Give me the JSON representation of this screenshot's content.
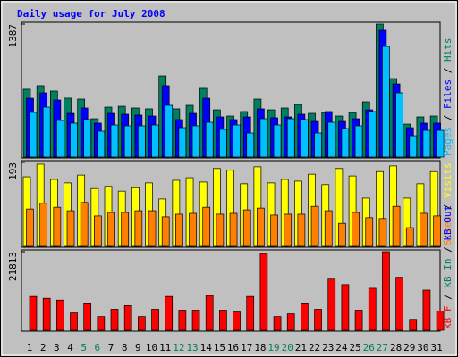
{
  "chart_data": [
    {
      "type": "bar",
      "title": "Daily usage for July 2008",
      "ylim": [
        0,
        1387
      ],
      "yticks": [
        1387
      ],
      "series": [
        {
          "name": "Pages",
          "color": "#00c0ff",
          "values": [
            466,
            521,
            382,
            354,
            391,
            270,
            335,
            326,
            326,
            335,
            540,
            307,
            326,
            363,
            289,
            335,
            251,
            400,
            335,
            400,
            391,
            251,
            363,
            298,
            326,
            475,
            1154,
            670,
            223,
            279,
            279
          ]
        },
        {
          "name": "Files",
          "color": "#0000ff",
          "values": [
            614,
            670,
            596,
            456,
            512,
            354,
            456,
            447,
            438,
            428,
            745,
            391,
            456,
            614,
            419,
            391,
            419,
            503,
            410,
            419,
            447,
            372,
            475,
            372,
            400,
            493,
            1322,
            763,
            307,
            354,
            354
          ]
        },
        {
          "name": "Hits",
          "color": "#008060",
          "values": [
            708,
            745,
            689,
            615,
            605,
            400,
            521,
            530,
            512,
            503,
            847,
            503,
            540,
            717,
            493,
            428,
            475,
            605,
            493,
            512,
            549,
            456,
            465,
            428,
            465,
            577,
            1387,
            819,
            344,
            419,
            428
          ]
        }
      ]
    },
    {
      "type": "bar",
      "ylim": [
        0,
        193
      ],
      "yticks": [
        193
      ],
      "series": [
        {
          "name": "Sites",
          "color": "#ff8000",
          "values": [
            86,
            99,
            90,
            82,
            101,
            70,
            78,
            78,
            82,
            82,
            68,
            74,
            76,
            90,
            74,
            76,
            84,
            88,
            72,
            74,
            74,
            92,
            82,
            53,
            78,
            66,
            64,
            92,
            43,
            76,
            70
          ]
        },
        {
          "name": "Visits",
          "color": "#ffff00",
          "values": [
            160,
            189,
            154,
            146,
            164,
            133,
            138,
            127,
            135,
            146,
            109,
            152,
            158,
            148,
            179,
            175,
            144,
            183,
            146,
            154,
            150,
            166,
            142,
            179,
            162,
            111,
            172,
            185,
            111,
            144,
            172
          ]
        }
      ]
    },
    {
      "type": "bar",
      "ylim": [
        0,
        21813
      ],
      "yticks": [
        21813
      ],
      "categories": [
        "1",
        "2",
        "3",
        "4",
        "5",
        "6",
        "7",
        "8",
        "9",
        "10",
        "11",
        "12",
        "13",
        "14",
        "15",
        "16",
        "17",
        "18",
        "19",
        "20",
        "21",
        "22",
        "23",
        "24",
        "25",
        "26",
        "27",
        "28",
        "29",
        "30",
        "31"
      ],
      "category_colors": [
        "#000000",
        "#000000",
        "#000000",
        "#000000",
        "#008060",
        "#008060",
        "#000000",
        "#000000",
        "#000000",
        "#000000",
        "#000000",
        "#008060",
        "#008060",
        "#000000",
        "#000000",
        "#000000",
        "#000000",
        "#000000",
        "#008060",
        "#008060",
        "#000000",
        "#000000",
        "#000000",
        "#000000",
        "#000000",
        "#008060",
        "#008060",
        "#000000",
        "#000000",
        "#000000",
        "#000000"
      ],
      "series": [
        {
          "name": "kB F",
          "color": "#ff0000",
          "values": [
            9383,
            8876,
            8369,
            4819,
            7354,
            3804,
            5833,
            6847,
            3804,
            5833,
            9383,
            5580,
            5580,
            9637,
            5580,
            5072,
            9383,
            21302,
            3804,
            4565,
            7354,
            5833,
            14202,
            12680,
            5580,
            11666,
            21813,
            14709,
            3043,
            11159,
            5326
          ]
        },
        {
          "name": "kB In",
          "color": "#008060",
          "values": [
            0,
            0,
            0,
            0,
            0,
            0,
            0,
            0,
            0,
            0,
            0,
            0,
            0,
            0,
            0,
            0,
            0,
            0,
            0,
            0,
            0,
            0,
            0,
            0,
            0,
            0,
            0,
            0,
            0,
            0,
            0
          ]
        },
        {
          "name": "kB Out",
          "color": "#0000ff",
          "values": [
            0,
            0,
            0,
            0,
            0,
            0,
            0,
            0,
            0,
            0,
            0,
            0,
            0,
            0,
            0,
            0,
            0,
            0,
            0,
            0,
            0,
            0,
            0,
            0,
            0,
            0,
            0,
            0,
            0,
            0,
            0
          ]
        }
      ]
    }
  ],
  "legend_separator": " / "
}
